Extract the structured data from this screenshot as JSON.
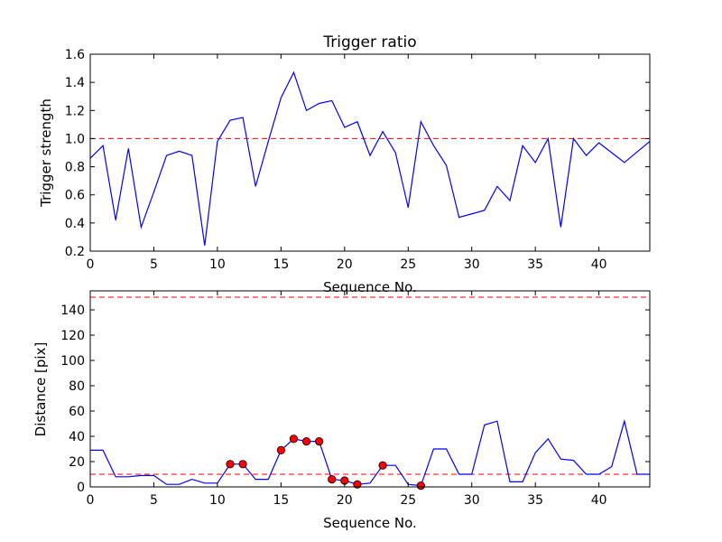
{
  "chart_data": [
    {
      "type": "line",
      "title": "Trigger ratio",
      "xlabel": "Sequence No.",
      "ylabel": "Trigger strength",
      "xlim": [
        0,
        44
      ],
      "ylim": [
        0.2,
        1.6
      ],
      "xticks": [
        0,
        5,
        10,
        15,
        20,
        25,
        30,
        35,
        40
      ],
      "yticks": [
        0.2,
        0.4,
        0.6,
        0.8,
        1.0,
        1.2,
        1.4,
        1.6
      ],
      "xtick_labels": [
        "0",
        "5",
        "10",
        "15",
        "20",
        "25",
        "30",
        "35",
        "40"
      ],
      "ytick_labels": [
        "0.2",
        "0.4",
        "0.6",
        "0.8",
        "1.0",
        "1.2",
        "1.4",
        "1.6"
      ],
      "hlines": [
        {
          "y": 1.0,
          "style": "dashed",
          "color": "#ff0000"
        }
      ],
      "series": [
        {
          "color": "#0000ff",
          "x": [
            0,
            1,
            2,
            3,
            4,
            5,
            6,
            7,
            8,
            9,
            10,
            11,
            12,
            13,
            14,
            15,
            16,
            17,
            18,
            19,
            20,
            21,
            22,
            23,
            24,
            25,
            26,
            27,
            28,
            29,
            30,
            31,
            32,
            33,
            34,
            35,
            36,
            37,
            38,
            39,
            40,
            41,
            42,
            43,
            44
          ],
          "y": [
            0.86,
            0.95,
            0.42,
            0.93,
            0.37,
            0.62,
            0.88,
            0.91,
            0.88,
            0.24,
            0.98,
            1.13,
            1.15,
            0.66,
            0.98,
            1.29,
            1.47,
            1.2,
            1.25,
            1.27,
            1.08,
            1.12,
            0.88,
            1.05,
            0.9,
            0.51,
            1.12,
            0.95,
            0.81,
            0.44,
            0.465,
            0.49,
            0.66,
            0.56,
            0.95,
            0.83,
            1.0,
            0.37,
            1.0,
            0.88,
            0.97,
            0.9,
            0.83,
            0.905,
            0.98
          ]
        }
      ]
    },
    {
      "type": "line",
      "title": "",
      "xlabel": "Sequence No.",
      "ylabel": "Distance [pix]",
      "xlim": [
        0,
        44
      ],
      "ylim": [
        0,
        155
      ],
      "xticks": [
        0,
        5,
        10,
        15,
        20,
        25,
        30,
        35,
        40
      ],
      "yticks": [
        0,
        20,
        40,
        60,
        80,
        100,
        120,
        140
      ],
      "xtick_labels": [
        "0",
        "5",
        "10",
        "15",
        "20",
        "25",
        "30",
        "35",
        "40"
      ],
      "ytick_labels": [
        "0",
        "20",
        "40",
        "60",
        "80",
        "100",
        "120",
        "140"
      ],
      "hlines": [
        {
          "y": 150,
          "style": "dashed",
          "color": "#ff0000"
        },
        {
          "y": 10,
          "style": "dashed",
          "color": "#ff0000"
        }
      ],
      "series": [
        {
          "color": "#0000ff",
          "x": [
            0,
            1,
            2,
            3,
            4,
            5,
            6,
            7,
            8,
            9,
            10,
            11,
            12,
            13,
            14,
            15,
            16,
            17,
            18,
            19,
            20,
            21,
            22,
            23,
            24,
            25,
            26,
            27,
            28,
            29,
            30,
            31,
            32,
            33,
            34,
            35,
            36,
            37,
            38,
            39,
            40,
            41,
            42,
            43,
            44
          ],
          "y": [
            29,
            29,
            8,
            8,
            9,
            9,
            2,
            2,
            6,
            3,
            3,
            18,
            18,
            6,
            6,
            29,
            38,
            36,
            36,
            6,
            5,
            2,
            3,
            17,
            17,
            2,
            1,
            30,
            30,
            10,
            10,
            49,
            52,
            4,
            4,
            27,
            38,
            22,
            21,
            10,
            10,
            16,
            52,
            10,
            10
          ]
        },
        {
          "type": "scatter",
          "marker": "circle",
          "color": "#ff0000",
          "x": [
            11,
            12,
            15,
            16,
            17,
            18,
            19,
            20,
            21,
            23,
            26
          ],
          "y": [
            18,
            18,
            29,
            38,
            36,
            36,
            6,
            5,
            2,
            17,
            1
          ]
        }
      ]
    }
  ]
}
